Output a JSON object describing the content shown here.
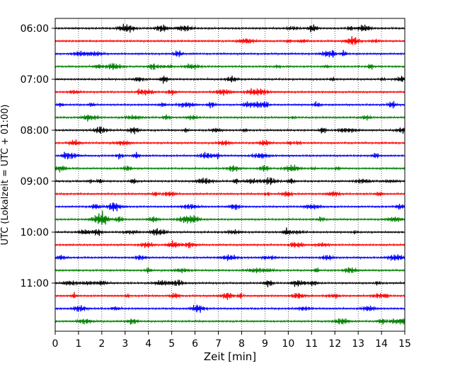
{
  "chart_data": {
    "type": "line",
    "chart_kind": "helicorder",
    "title": "",
    "xlabel": "Zeit  [min]",
    "ylabel": "UTC (Lokalzeit = UTC + 01:00)",
    "xlim": [
      0,
      15
    ],
    "x_ticks": [
      "0",
      "1",
      "2",
      "3",
      "4",
      "5",
      "6",
      "7",
      "8",
      "9",
      "10",
      "11",
      "12",
      "13",
      "14",
      "15"
    ],
    "y_ticks": [
      "06:00",
      "07:00",
      "08:00",
      "09:00",
      "10:00",
      "11:00"
    ],
    "trace_interval_min": 15,
    "first_trace_utc": "06:00",
    "trace_count": 24,
    "trace_color_cycle": [
      "#000000",
      "#ff0000",
      "#0000ff",
      "#008000"
    ],
    "grid": "vertical dotted lines at each minute",
    "legend": "none"
  }
}
